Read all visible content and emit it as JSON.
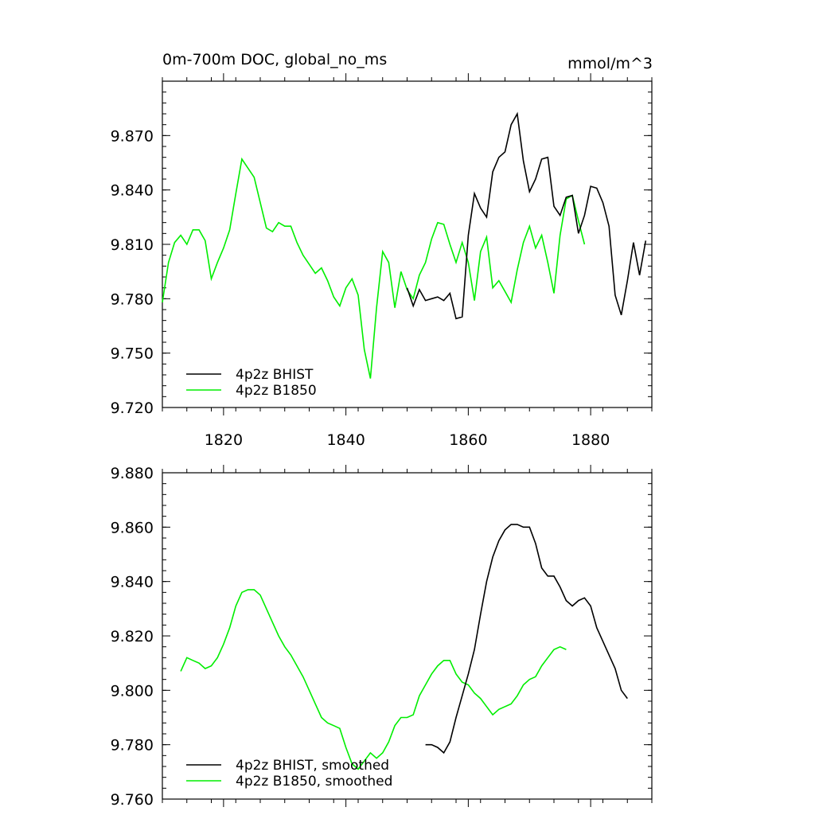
{
  "colors": {
    "bhist": "#000000",
    "b1850": "#00ee00",
    "axis": "#000000",
    "background": "#ffffff"
  },
  "chart_data": [
    {
      "type": "line",
      "title": "0m-700m DOC, global_no_ms",
      "units": "mmol/m^3",
      "xlim": [
        1810,
        1890
      ],
      "ylim": [
        9.72,
        9.9
      ],
      "xticks": [
        1820,
        1840,
        1860,
        1880
      ],
      "xtick_labels": [
        "1820",
        "1840",
        "1860",
        "1880"
      ],
      "yticks": [
        9.72,
        9.75,
        9.78,
        9.81,
        9.84,
        9.87
      ],
      "ytick_labels": [
        "9.720",
        "9.750",
        "9.780",
        "9.810",
        "9.840",
        "9.870"
      ],
      "legend_location": "bottom-left",
      "series": [
        {
          "name": "4p2z BHIST",
          "color": "#000000",
          "x": [
            1850,
            1851,
            1852,
            1853,
            1854,
            1855,
            1856,
            1857,
            1858,
            1859,
            1860,
            1861,
            1862,
            1863,
            1864,
            1865,
            1866,
            1867,
            1868,
            1869,
            1870,
            1871,
            1872,
            1873,
            1874,
            1875,
            1876,
            1877,
            1878,
            1879,
            1880,
            1881,
            1882,
            1883,
            1884,
            1885,
            1886,
            1887,
            1888,
            1889
          ],
          "y": [
            9.786,
            9.776,
            9.785,
            9.779,
            9.78,
            9.781,
            9.779,
            9.783,
            9.769,
            9.77,
            9.815,
            9.838,
            9.83,
            9.825,
            9.85,
            9.858,
            9.861,
            9.876,
            9.882,
            9.856,
            9.839,
            9.846,
            9.857,
            9.858,
            9.831,
            9.826,
            9.836,
            9.837,
            9.816,
            9.826,
            9.842,
            9.841,
            9.833,
            9.82,
            9.782,
            9.771,
            9.79,
            9.811,
            9.793,
            9.812
          ]
        },
        {
          "name": "4p2z B1850",
          "color": "#00ee00",
          "x": [
            1810,
            1811,
            1812,
            1813,
            1814,
            1815,
            1816,
            1817,
            1818,
            1819,
            1820,
            1821,
            1822,
            1823,
            1824,
            1825,
            1826,
            1827,
            1828,
            1829,
            1830,
            1831,
            1832,
            1833,
            1834,
            1835,
            1836,
            1837,
            1838,
            1839,
            1840,
            1841,
            1842,
            1843,
            1844,
            1845,
            1846,
            1847,
            1848,
            1849,
            1850,
            1851,
            1852,
            1853,
            1854,
            1855,
            1856,
            1857,
            1858,
            1859,
            1860,
            1861,
            1862,
            1863,
            1864,
            1865,
            1866,
            1867,
            1868,
            1869,
            1870,
            1871,
            1872,
            1873,
            1874,
            1875,
            1876,
            1877,
            1878,
            1879
          ],
          "y": [
            9.778,
            9.8,
            9.811,
            9.815,
            9.81,
            9.818,
            9.818,
            9.812,
            9.791,
            9.8,
            9.808,
            9.818,
            9.838,
            9.857,
            9.852,
            9.847,
            9.833,
            9.819,
            9.817,
            9.822,
            9.82,
            9.82,
            9.811,
            9.804,
            9.799,
            9.794,
            9.797,
            9.79,
            9.781,
            9.776,
            9.786,
            9.791,
            9.782,
            9.752,
            9.736,
            9.775,
            9.806,
            9.8,
            9.775,
            9.795,
            9.785,
            9.78,
            9.793,
            9.8,
            9.813,
            9.822,
            9.821,
            9.81,
            9.8,
            9.811,
            9.8,
            9.779,
            9.806,
            9.814,
            9.786,
            9.79,
            9.784,
            9.778,
            9.796,
            9.811,
            9.82,
            9.808,
            9.815,
            9.8,
            9.783,
            9.815,
            9.835,
            9.837,
            9.823,
            9.81
          ]
        }
      ]
    },
    {
      "type": "line",
      "title": "",
      "xlim": [
        1810,
        1890
      ],
      "ylim": [
        9.76,
        9.88
      ],
      "xticks": [
        1820,
        1840,
        1860,
        1880
      ],
      "yticks": [
        9.76,
        9.78,
        9.8,
        9.82,
        9.84,
        9.86,
        9.88
      ],
      "ytick_labels": [
        "9.760",
        "9.780",
        "9.800",
        "9.820",
        "9.840",
        "9.860",
        "9.880"
      ],
      "legend_location": "bottom-left",
      "series": [
        {
          "name": "4p2z BHIST, smoothed",
          "color": "#000000",
          "x": [
            1853,
            1854,
            1855,
            1856,
            1857,
            1858,
            1859,
            1860,
            1861,
            1862,
            1863,
            1864,
            1865,
            1866,
            1867,
            1868,
            1869,
            1870,
            1871,
            1872,
            1873,
            1874,
            1875,
            1876,
            1877,
            1878,
            1879,
            1880,
            1881,
            1882,
            1883,
            1884,
            1885,
            1886
          ],
          "y": [
            9.78,
            9.78,
            9.779,
            9.777,
            9.781,
            9.79,
            9.798,
            9.806,
            9.815,
            9.828,
            9.84,
            9.849,
            9.855,
            9.859,
            9.861,
            9.861,
            9.86,
            9.86,
            9.854,
            9.845,
            9.842,
            9.842,
            9.838,
            9.833,
            9.831,
            9.833,
            9.834,
            9.831,
            9.823,
            9.818,
            9.813,
            9.808,
            9.8,
            9.797
          ]
        },
        {
          "name": "4p2z B1850, smoothed",
          "color": "#00ee00",
          "x": [
            1813,
            1814,
            1815,
            1816,
            1817,
            1818,
            1819,
            1820,
            1821,
            1822,
            1823,
            1824,
            1825,
            1826,
            1827,
            1828,
            1829,
            1830,
            1831,
            1832,
            1833,
            1834,
            1835,
            1836,
            1837,
            1838,
            1839,
            1840,
            1841,
            1842,
            1843,
            1844,
            1845,
            1846,
            1847,
            1848,
            1849,
            1850,
            1851,
            1852,
            1853,
            1854,
            1855,
            1856,
            1857,
            1858,
            1859,
            1860,
            1861,
            1862,
            1863,
            1864,
            1865,
            1866,
            1867,
            1868,
            1869,
            1870,
            1871,
            1872,
            1873,
            1874,
            1875,
            1876
          ],
          "y": [
            9.807,
            9.812,
            9.811,
            9.81,
            9.808,
            9.809,
            9.812,
            9.817,
            9.823,
            9.831,
            9.836,
            9.837,
            9.837,
            9.835,
            9.83,
            9.825,
            9.82,
            9.816,
            9.813,
            9.809,
            9.805,
            9.8,
            9.795,
            9.79,
            9.788,
            9.787,
            9.786,
            9.779,
            9.773,
            9.771,
            9.774,
            9.777,
            9.775,
            9.777,
            9.781,
            9.787,
            9.79,
            9.79,
            9.791,
            9.798,
            9.802,
            9.806,
            9.809,
            9.811,
            9.811,
            9.806,
            9.803,
            9.802,
            9.799,
            9.797,
            9.794,
            9.791,
            9.793,
            9.794,
            9.795,
            9.798,
            9.802,
            9.804,
            9.805,
            9.809,
            9.812,
            9.815,
            9.816,
            9.815
          ]
        }
      ]
    }
  ]
}
